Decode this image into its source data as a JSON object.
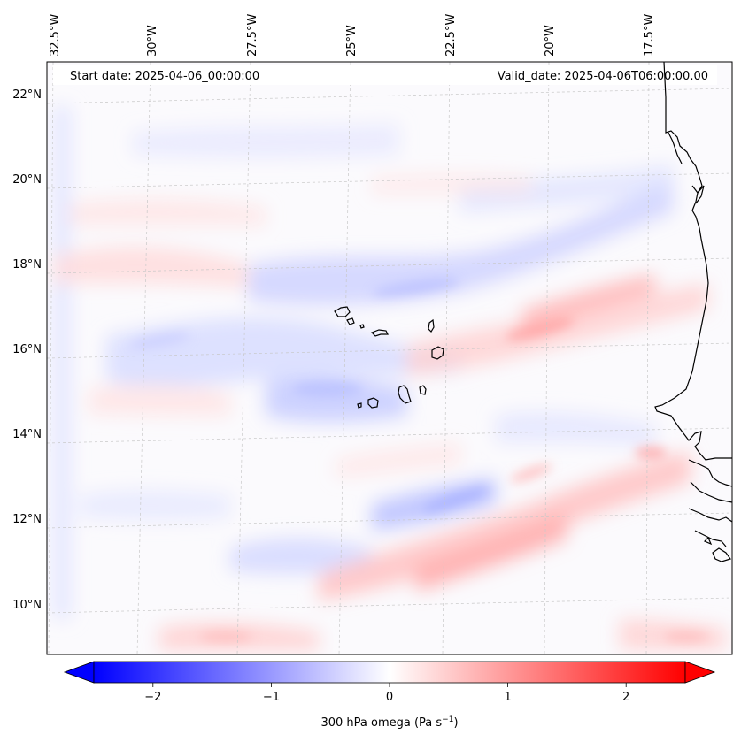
{
  "header": {
    "start_date": "Start date: 2025-04-06_00:00:00",
    "valid_date": "Valid_date: 2025-04-06T06:00:00.00"
  },
  "axes": {
    "lon_labels": [
      "32.5°W",
      "30°W",
      "27.5°W",
      "25°W",
      "22.5°W",
      "20°W",
      "17.5°W"
    ],
    "lat_labels": [
      "22°N",
      "20°N",
      "18°N",
      "16°N",
      "14°N",
      "12°N",
      "10°N"
    ]
  },
  "colorbar": {
    "ticks": [
      "−2",
      "−1",
      "0",
      "1",
      "2"
    ],
    "tick_values": [
      -2,
      -1,
      0,
      1,
      2
    ],
    "range": [
      -2.5,
      2.5
    ],
    "label": "300 hPa omega (Pa s",
    "label_exponent": "−1",
    "label_close": ")",
    "colormap": "bwr",
    "low_color": "#0000ff",
    "mid_color": "#ffffff",
    "high_color": "#ff0000"
  },
  "map": {
    "field": "300 hPa omega",
    "coastline_color": "#000000",
    "gridline_color": "#c8c8c8"
  }
}
